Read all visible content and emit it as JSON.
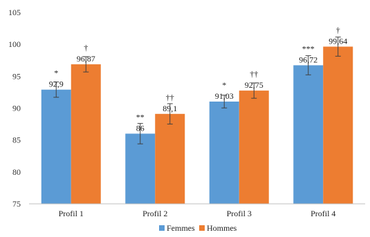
{
  "chart_data": {
    "type": "bar",
    "categories": [
      "Profil 1",
      "Profil 2",
      "Profil 3",
      "Profil 4"
    ],
    "series": [
      {
        "name": "Femmes",
        "color": "#5B9BD5",
        "values": [
          92.9,
          86,
          91.03,
          96.72
        ],
        "value_labels": [
          "92,9",
          "86",
          "91,03",
          "96,72"
        ],
        "error": [
          1.2,
          1.6,
          1.0,
          1.5
        ],
        "significance": [
          "*",
          "**",
          "*",
          "***"
        ]
      },
      {
        "name": "Hommes",
        "color": "#ED7D31",
        "values": [
          96.87,
          89.1,
          92.75,
          99.64
        ],
        "value_labels": [
          "96,87",
          "89,1",
          "92,75",
          "99,64"
        ],
        "error": [
          1.2,
          1.6,
          1.2,
          1.5
        ],
        "significance": [
          "†",
          "††",
          "††",
          "†"
        ]
      }
    ],
    "ylim": [
      75,
      105
    ],
    "yticks": [
      75,
      80,
      85,
      90,
      95,
      100,
      105
    ],
    "grid": false,
    "legend": "bottom-center",
    "error_bars": true
  }
}
